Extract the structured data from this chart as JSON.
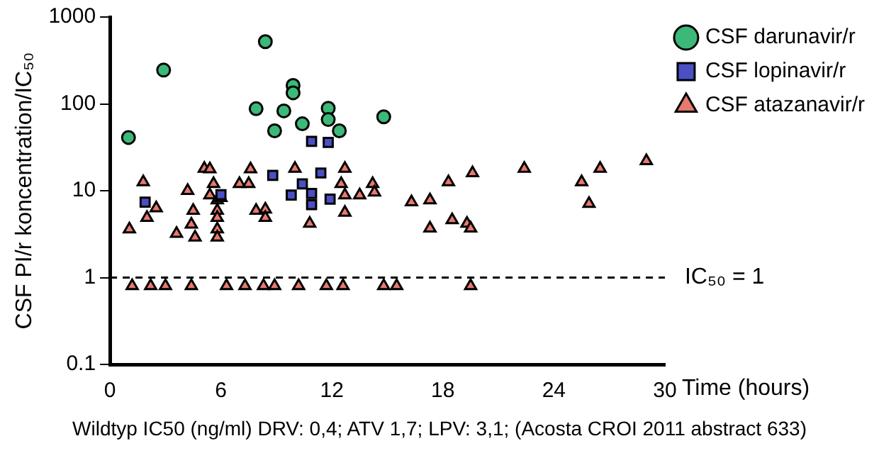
{
  "chart_data": {
    "type": "scatter",
    "xlabel": "Time (hours)",
    "ylabel": "CSF PI/r koncentration/IC₅₀",
    "log": "y",
    "xlim": [
      0,
      30
    ],
    "xticks": [
      0,
      6,
      12,
      18,
      24,
      30
    ],
    "ylim": [
      0.1,
      1000
    ],
    "yticks": [
      0.1,
      1,
      10,
      100,
      1000
    ],
    "grid": false,
    "legend": "top right",
    "series": [
      {
        "name": "CSF darunavir/r",
        "color": "#3cb878",
        "marker": "circle",
        "x": [
          1.0,
          2.9,
          8.4,
          7.9,
          9.9,
          9.9,
          9.4,
          8.9,
          10.4,
          11.8,
          11.8,
          12.4,
          14.8
        ],
        "values": [
          41,
          245,
          520,
          88,
          163,
          134,
          83,
          49,
          59,
          89,
          66,
          49,
          71
        ]
      },
      {
        "name": "CSF lopinavir/r",
        "color": "#4a4fc4",
        "marker": "square",
        "x": [
          10.9,
          11.8,
          8.8,
          11.4,
          1.9,
          10.4,
          9.8,
          10.9,
          10.9,
          11.9,
          6.0
        ],
        "values": [
          37,
          36,
          15,
          16,
          7.4,
          12,
          8.9,
          9.3,
          6.9,
          8,
          9
        ]
      },
      {
        "name": "CSF atazanavir/r",
        "color": "#e8796e",
        "marker": "triangle",
        "x": [
          1.2,
          2.2,
          3.0,
          4.4,
          6.3,
          7.3,
          8.3,
          8.9,
          10.2,
          11.7,
          12.6,
          14.8,
          15.5,
          19.5,
          1.8,
          1.05,
          2.0,
          2.5,
          3.6,
          4.2,
          4.4,
          4.5,
          4.6,
          5.1,
          5.4,
          5.6,
          5.4,
          5.8,
          5.8,
          5.8,
          5.8,
          5.8,
          6.0,
          7.0,
          7.5,
          7.6,
          7.9,
          8.4,
          8.4,
          10.0,
          10.8,
          12.5,
          12.7,
          12.7,
          12.7,
          13.5,
          14.2,
          14.3,
          16.3,
          17.3,
          17.3,
          18.3,
          18.5,
          19.3,
          19.5,
          19.6,
          22.4,
          26.5,
          25.5,
          25.9,
          29.0
        ],
        "values": [
          0.8,
          0.8,
          0.8,
          0.8,
          0.8,
          0.8,
          0.8,
          0.8,
          0.8,
          0.8,
          0.8,
          0.8,
          0.8,
          0.8,
          12.6,
          3.6,
          4.9,
          6.3,
          3.2,
          10,
          4.1,
          5.9,
          2.9,
          18,
          17.7,
          12,
          8.9,
          7.8,
          5.9,
          4.9,
          3.6,
          2.9,
          8.3,
          12,
          12,
          17.7,
          5.9,
          6.1,
          4.9,
          18,
          4.2,
          12,
          18,
          8.9,
          5.6,
          8.9,
          12,
          9.6,
          7.4,
          7.8,
          3.7,
          12.6,
          4.6,
          4.2,
          3.7,
          16,
          18,
          18,
          12.6,
          7.1,
          22
        ]
      }
    ],
    "ref_lines": [
      {
        "axis": "y",
        "value": 1,
        "label": "IC₅₀ = 1",
        "line_style": "dashed"
      }
    ],
    "annotations": [
      "Wildtyp IC50 (ng/ml) DRV: 0,4; ATV 1,7; LPV: 3,1; (Acosta CROI 2011 abstract 633)"
    ]
  }
}
